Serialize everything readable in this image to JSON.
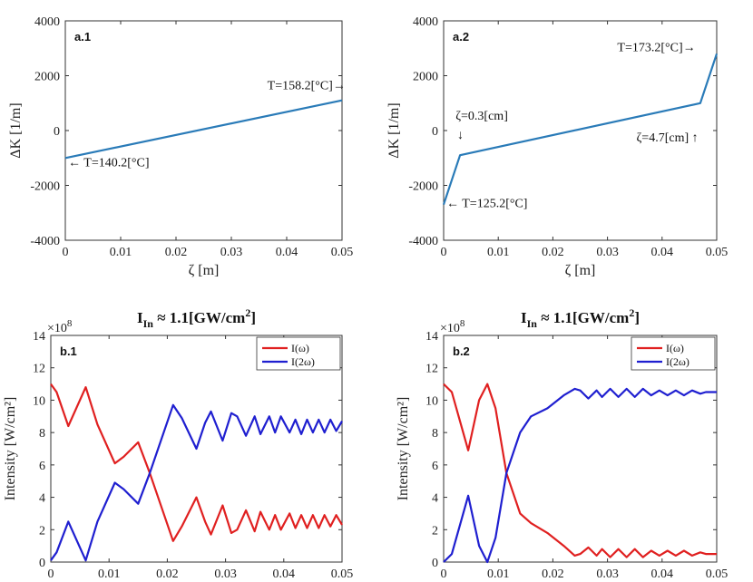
{
  "chart_data": [
    {
      "id": "a1",
      "type": "line",
      "tag": "a.1",
      "title": "",
      "xlabel": "ζ [m]",
      "ylabel": "ΔK [1/m]",
      "xlim": [
        0,
        0.05
      ],
      "ylim": [
        -4000,
        4000
      ],
      "xticks": [
        "0",
        "0.01",
        "0.02",
        "0.03",
        "0.04",
        "0.05"
      ],
      "yticks": [
        "-4000",
        "-2000",
        "0",
        "2000",
        "4000"
      ],
      "series": [
        {
          "name": "ΔK",
          "color": "#2a7bb8",
          "x": [
            0,
            0.05
          ],
          "y": [
            -1000,
            1100
          ]
        }
      ],
      "annotations": [
        {
          "text": "T=158.2[°C]→",
          "x": 0.0365,
          "y": 1500,
          "anchor": "start"
        },
        {
          "text": "← T=140.2[°C]",
          "x": 0.0005,
          "y": -1300,
          "anchor": "start"
        }
      ]
    },
    {
      "id": "a2",
      "type": "line",
      "tag": "a.2",
      "title": "",
      "xlabel": "ζ [m]",
      "ylabel": "ΔK [1/m]",
      "xlim": [
        0,
        0.05
      ],
      "ylim": [
        -4000,
        4000
      ],
      "xticks": [
        "0",
        "0.01",
        "0.02",
        "0.03",
        "0.04",
        "0.05"
      ],
      "yticks": [
        "-4000",
        "-2000",
        "0",
        "2000",
        "4000"
      ],
      "series": [
        {
          "name": "ΔK",
          "color": "#2a7bb8",
          "x": [
            0,
            0.003,
            0.047,
            0.05
          ],
          "y": [
            -2700,
            -900,
            1000,
            2800
          ]
        }
      ],
      "annotations": [
        {
          "text": "T=173.2[°C]→",
          "x": 0.0318,
          "y": 2900,
          "anchor": "start"
        },
        {
          "text": "ζ=0.3[cm]",
          "x": 0.0022,
          "y": 400,
          "anchor": "start"
        },
        {
          "text": "↓",
          "x": 0.0025,
          "y": -300,
          "anchor": "start"
        },
        {
          "text": "ζ=4.7[cm] ↑",
          "x": 0.0353,
          "y": -400,
          "anchor": "start"
        },
        {
          "text": "← T=125.2[°C]",
          "x": 0.0005,
          "y": -2800,
          "anchor": "start"
        }
      ]
    },
    {
      "id": "b1",
      "type": "line",
      "tag": "b.1",
      "title": "I_In ≈ 1.1[GW/cm^2]",
      "title_main": "I",
      "title_sub": "In",
      "title_mid": "≈ 1.1[GW/cm",
      "title_sup": "2",
      "title_end": "]",
      "xlabel": "ζ [m]",
      "ylabel": "Intensity [W/cm²]",
      "multiplier": "×10",
      "multiplier_exp": "8",
      "xlim": [
        0,
        0.05
      ],
      "ylim": [
        0,
        14
      ],
      "xticks": [
        "0",
        "0.01",
        "0.02",
        "0.03",
        "0.04",
        "0.05"
      ],
      "yticks": [
        "0",
        "2",
        "4",
        "6",
        "8",
        "10",
        "12",
        "14"
      ],
      "legend": [
        "I(ω)",
        "I(2ω)"
      ],
      "series": [
        {
          "name": "I(ω)",
          "color": "#e02020",
          "x": [
            0,
            0.001,
            0.003,
            0.006,
            0.008,
            0.011,
            0.0125,
            0.015,
            0.017,
            0.021,
            0.0225,
            0.025,
            0.0265,
            0.0275,
            0.0295,
            0.031,
            0.032,
            0.0335,
            0.035,
            0.036,
            0.0375,
            0.0385,
            0.0395,
            0.041,
            0.042,
            0.043,
            0.044,
            0.045,
            0.046,
            0.047,
            0.048,
            0.049,
            0.05
          ],
          "y": [
            11,
            10.5,
            8.4,
            10.8,
            8.5,
            6.1,
            6.5,
            7.4,
            5.5,
            1.3,
            2.2,
            4.0,
            2.5,
            1.7,
            3.5,
            1.8,
            2.0,
            3.2,
            1.9,
            3.1,
            2.0,
            2.9,
            2.0,
            3.0,
            2.1,
            2.9,
            2.1,
            2.9,
            2.1,
            2.9,
            2.2,
            2.9,
            2.3
          ]
        },
        {
          "name": "I(2ω)",
          "color": "#1f1fd0",
          "x": [
            0,
            0.001,
            0.003,
            0.006,
            0.008,
            0.011,
            0.0125,
            0.015,
            0.017,
            0.021,
            0.0225,
            0.025,
            0.0265,
            0.0275,
            0.0295,
            0.031,
            0.032,
            0.0335,
            0.035,
            0.036,
            0.0375,
            0.0385,
            0.0395,
            0.041,
            0.042,
            0.043,
            0.044,
            0.045,
            0.046,
            0.047,
            0.048,
            0.049,
            0.05
          ],
          "y": [
            0.1,
            0.6,
            2.5,
            0.1,
            2.5,
            4.9,
            4.5,
            3.6,
            5.5,
            9.7,
            8.9,
            7.0,
            8.6,
            9.3,
            7.5,
            9.2,
            9.0,
            7.8,
            9.0,
            7.9,
            9.0,
            8.0,
            9.0,
            8.0,
            8.8,
            7.9,
            8.8,
            8.0,
            8.8,
            8.0,
            8.8,
            8.1,
            8.7
          ]
        }
      ]
    },
    {
      "id": "b2",
      "type": "line",
      "tag": "b.2",
      "title": "I_In ≈ 1.1[GW/cm^2]",
      "title_main": "I",
      "title_sub": "In",
      "title_mid": "≈ 1.1[GW/cm",
      "title_sup": "2",
      "title_end": "]",
      "xlabel": "ζ [m]",
      "ylabel": "Intensity [W/cm²]",
      "multiplier": "×10",
      "multiplier_exp": "8",
      "xlim": [
        0,
        0.05
      ],
      "ylim": [
        0,
        14
      ],
      "xticks": [
        "0",
        "0.01",
        "0.02",
        "0.03",
        "0.04",
        "0.05"
      ],
      "yticks": [
        "0",
        "2",
        "4",
        "6",
        "8",
        "10",
        "12",
        "14"
      ],
      "legend": [
        "I(ω)",
        "I(2ω)"
      ],
      "series": [
        {
          "name": "I(ω)",
          "color": "#e02020",
          "x": [
            0,
            0.0015,
            0.0045,
            0.0065,
            0.008,
            0.0095,
            0.0115,
            0.014,
            0.016,
            0.019,
            0.022,
            0.024,
            0.025,
            0.0265,
            0.028,
            0.029,
            0.0305,
            0.032,
            0.0335,
            0.035,
            0.0365,
            0.038,
            0.0395,
            0.041,
            0.0425,
            0.044,
            0.0455,
            0.047,
            0.048,
            0.049,
            0.05
          ],
          "y": [
            11,
            10.5,
            6.9,
            10.0,
            11,
            9.5,
            5.5,
            3.0,
            2.4,
            1.8,
            1.0,
            0.4,
            0.5,
            0.9,
            0.4,
            0.8,
            0.3,
            0.8,
            0.3,
            0.8,
            0.3,
            0.7,
            0.4,
            0.7,
            0.4,
            0.7,
            0.4,
            0.6,
            0.5,
            0.5,
            0.5
          ]
        },
        {
          "name": "I(2ω)",
          "color": "#1f1fd0",
          "x": [
            0,
            0.0015,
            0.0045,
            0.0065,
            0.008,
            0.0095,
            0.0115,
            0.014,
            0.016,
            0.019,
            0.022,
            0.024,
            0.025,
            0.0265,
            0.028,
            0.029,
            0.0305,
            0.032,
            0.0335,
            0.035,
            0.0365,
            0.038,
            0.0395,
            0.041,
            0.0425,
            0.044,
            0.0455,
            0.047,
            0.048,
            0.049,
            0.05
          ],
          "y": [
            0,
            0.5,
            4.1,
            1.0,
            0,
            1.5,
            5.5,
            8.0,
            9.0,
            9.5,
            10.3,
            10.7,
            10.6,
            10.1,
            10.6,
            10.2,
            10.7,
            10.2,
            10.7,
            10.2,
            10.7,
            10.3,
            10.6,
            10.3,
            10.6,
            10.3,
            10.6,
            10.4,
            10.5,
            10.5,
            10.5
          ]
        }
      ]
    }
  ]
}
